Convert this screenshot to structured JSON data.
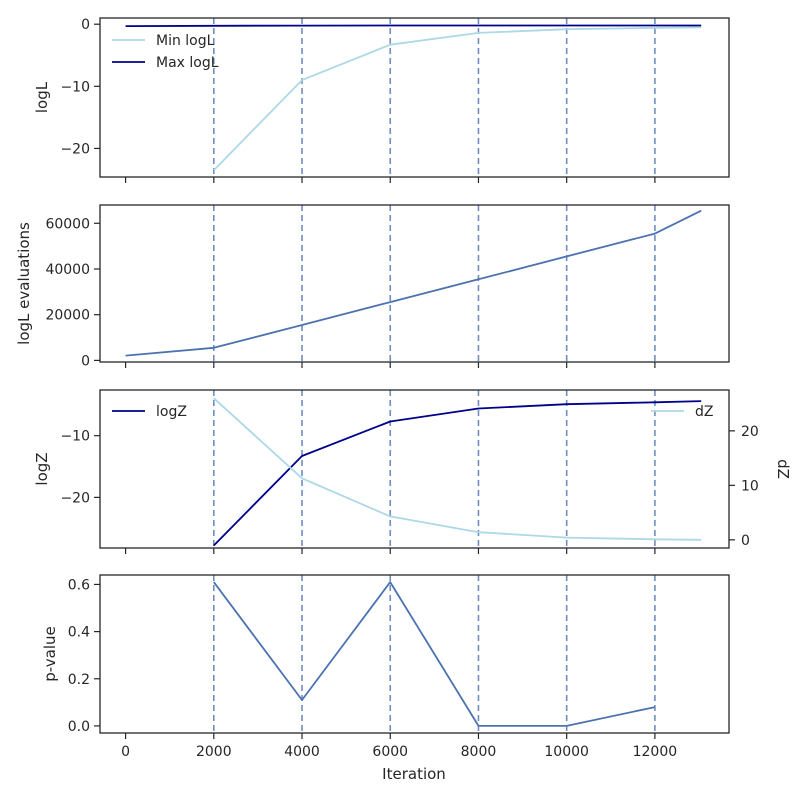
{
  "figure": {
    "xlabel": "Iteration"
  },
  "chart_data": [
    {
      "type": "line",
      "ylabel": "logL",
      "xlim": [
        -580,
        13680
      ],
      "ylim": [
        -24.6,
        1.0
      ],
      "yticks": [
        0,
        -10,
        -20
      ],
      "ytick_labels": [
        "0",
        "−10",
        "−20"
      ],
      "vlines": [
        2000,
        4000,
        6000,
        8000,
        10000,
        12000
      ],
      "legend": {
        "placement": "upper-left"
      },
      "series": [
        {
          "name": "Min logL",
          "color": "#add8e6",
          "x": [
            2000,
            4000,
            6000,
            8000,
            10000,
            12000,
            13050
          ],
          "y": [
            -23.5,
            -9.0,
            -3.3,
            -1.4,
            -0.8,
            -0.6,
            -0.5
          ]
        },
        {
          "name": "Max logL",
          "color": "#00008b",
          "x": [
            0,
            2000,
            4000,
            6000,
            8000,
            10000,
            12000,
            13050
          ],
          "y": [
            -0.3,
            -0.25,
            -0.22,
            -0.2,
            -0.2,
            -0.2,
            -0.2,
            -0.2
          ]
        }
      ]
    },
    {
      "type": "line",
      "ylabel": "logL evaluations",
      "xlim": [
        -580,
        13680
      ],
      "ylim": [
        -700,
        68000
      ],
      "yticks": [
        0,
        20000,
        40000,
        60000
      ],
      "ytick_labels": [
        "0",
        "20000",
        "40000",
        "60000"
      ],
      "vlines": [
        2000,
        4000,
        6000,
        8000,
        10000,
        12000
      ],
      "series": [
        {
          "color": "#4c72b0",
          "x": [
            0,
            2000,
            4000,
            6000,
            8000,
            10000,
            12000,
            13050
          ],
          "y": [
            2100,
            5500,
            15500,
            25500,
            35500,
            45500,
            55500,
            65500
          ]
        }
      ]
    },
    {
      "type": "line",
      "ylabel": "logZ",
      "ylabel_right": "dZ",
      "xlim": [
        -580,
        13680
      ],
      "ylim": [
        -28.2,
        -2.6
      ],
      "yticks": [
        -10,
        -20
      ],
      "ytick_labels": [
        "−10",
        "−20"
      ],
      "y2lim": [
        -1.5,
        27.5
      ],
      "y2ticks": [
        0,
        10,
        20
      ],
      "y2tick_labels": [
        "0",
        "10",
        "20"
      ],
      "vlines": [
        2000,
        4000,
        6000,
        8000,
        10000,
        12000
      ],
      "legend": {
        "placement": "upper-left / upper-right"
      },
      "series": [
        {
          "name": "logZ",
          "color": "#00008b",
          "axis": "left",
          "x": [
            2000,
            4000,
            6000,
            8000,
            10000,
            12000,
            13050
          ],
          "y": [
            -27.8,
            -13.3,
            -7.7,
            -5.6,
            -4.9,
            -4.6,
            -4.4
          ]
        },
        {
          "name": "dZ",
          "color": "#add8e6",
          "axis": "right",
          "x": [
            2000,
            4000,
            6000,
            8000,
            10000,
            12000,
            13050
          ],
          "y": [
            26.0,
            11.3,
            4.3,
            1.4,
            0.4,
            0.1,
            0.0
          ]
        }
      ]
    },
    {
      "type": "line",
      "ylabel": "p-value",
      "xlim": [
        -580,
        13680
      ],
      "ylim": [
        -0.03,
        0.64
      ],
      "yticks": [
        0.0,
        0.2,
        0.4,
        0.6
      ],
      "ytick_labels": [
        "0.0",
        "0.2",
        "0.4",
        "0.6"
      ],
      "xticks": [
        0,
        2000,
        4000,
        6000,
        8000,
        10000,
        12000
      ],
      "xtick_labels": [
        "0",
        "2000",
        "4000",
        "6000",
        "8000",
        "10000",
        "12000"
      ],
      "vlines": [
        2000,
        4000,
        6000,
        8000,
        10000,
        12000
      ],
      "series": [
        {
          "color": "#4c72b0",
          "x": [
            2000,
            4000,
            6000,
            8000,
            10000,
            12000
          ],
          "y": [
            0.61,
            0.11,
            0.61,
            0.0,
            0.0,
            0.08
          ]
        }
      ]
    }
  ]
}
